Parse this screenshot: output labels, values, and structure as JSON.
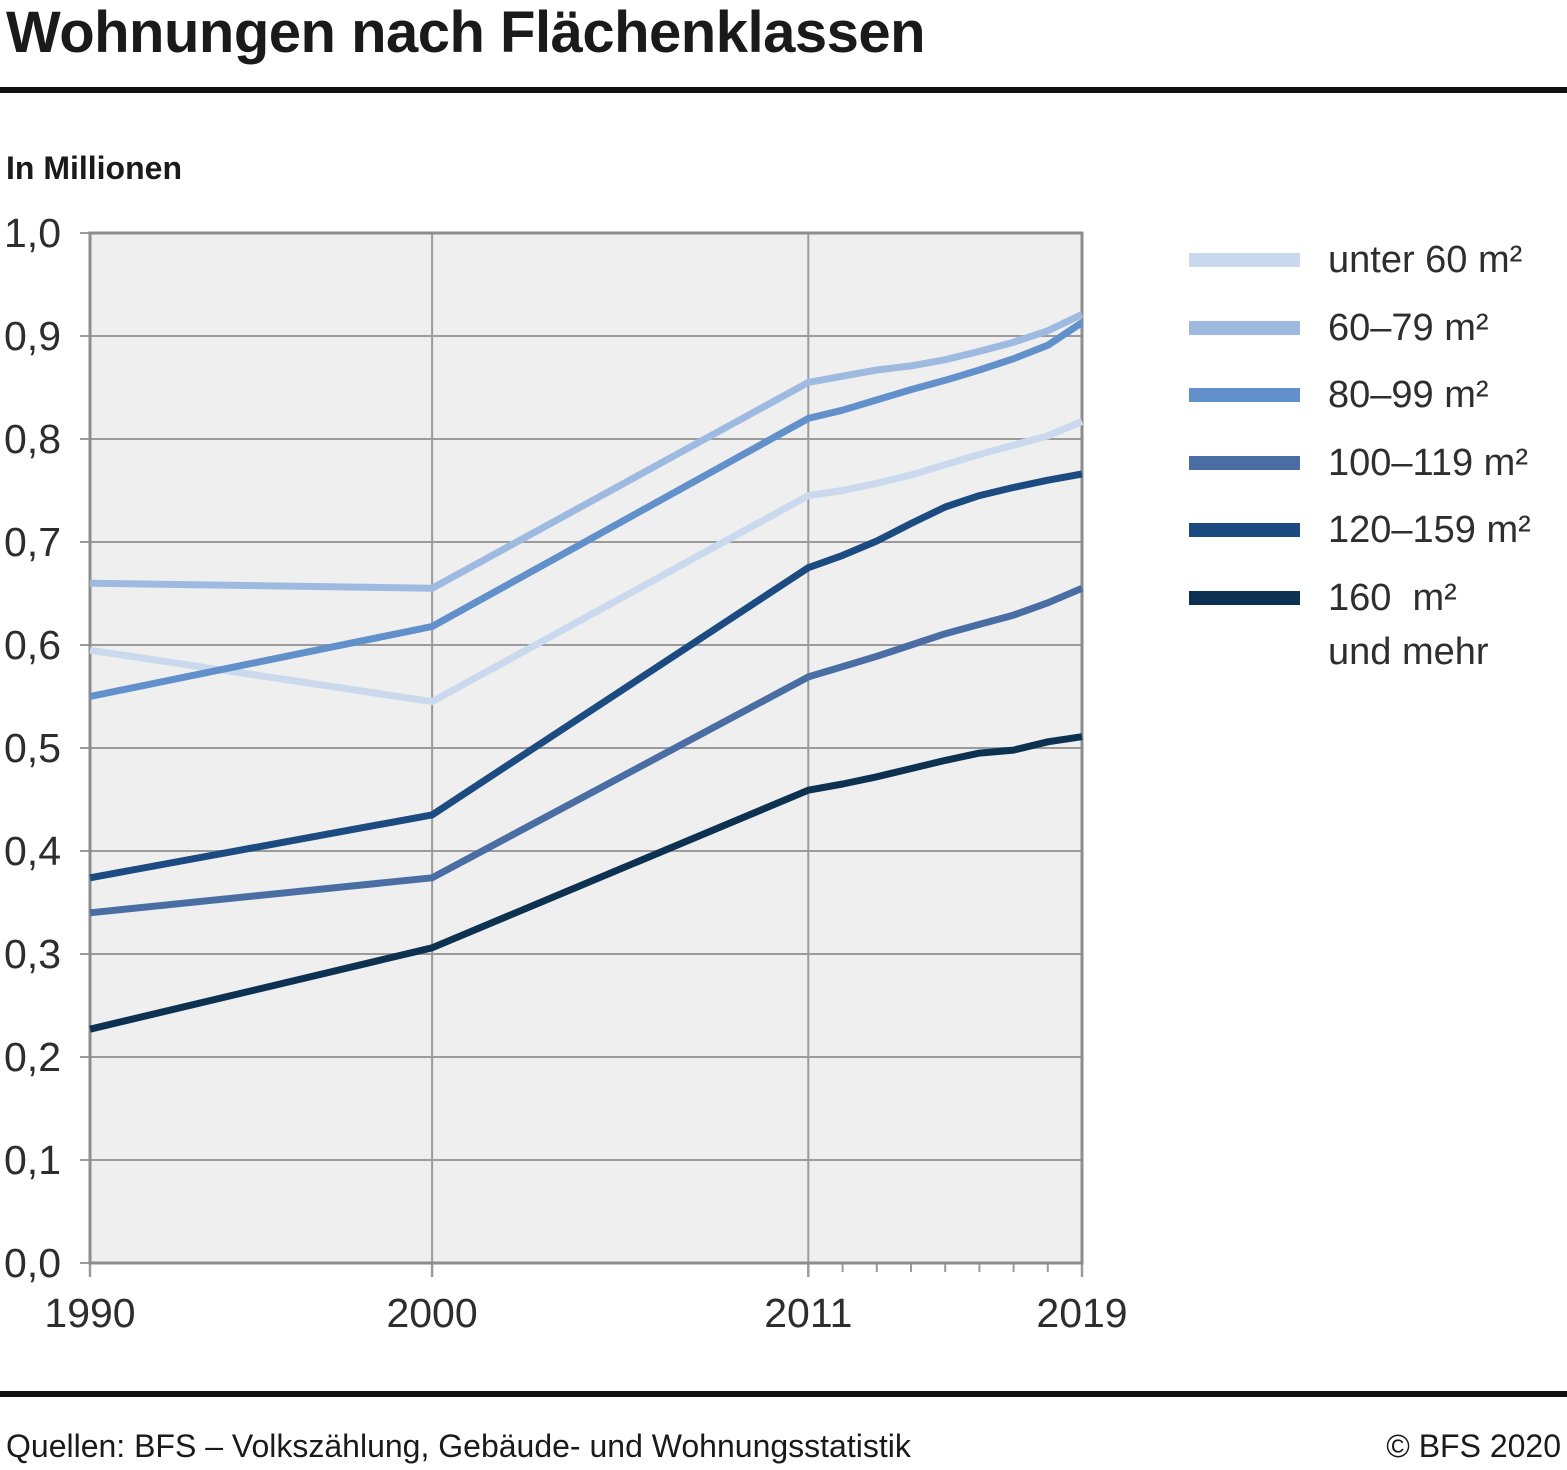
{
  "title": "Wohnungen nach Flächenklassen",
  "subtitle": "In Millionen",
  "footer": {
    "source": "Quellen: BFS – Volkszählung, Gebäude- und Wohnungsstatistik",
    "copyright": "© BFS 2020"
  },
  "colors": {
    "plot_background": "#efefef",
    "gridline": "#9b9b9b",
    "plot_border": "#8d8d8d",
    "rule": "#111111",
    "axis_text": "#2d2d2d"
  },
  "chart_data": {
    "type": "line",
    "title": "Wohnungen nach Flächenklassen",
    "unit_label": "In Millionen",
    "x": [
      1990,
      2000,
      2011,
      2012,
      2013,
      2014,
      2015,
      2016,
      2017,
      2018,
      2019
    ],
    "xlim": [
      1990,
      2019
    ],
    "ylim": [
      0.0,
      1.0
    ],
    "y_tick_step": 0.1,
    "y_tick_labels": [
      "0,0",
      "0,1",
      "0,2",
      "0,3",
      "0,4",
      "0,5",
      "0,6",
      "0,7",
      "0,8",
      "0,9",
      "1,0"
    ],
    "x_major_ticks": [
      {
        "year": 1990,
        "label": "1990"
      },
      {
        "year": 2000,
        "label": "2000"
      },
      {
        "year": 2011,
        "label": "2011"
      },
      {
        "year": 2019,
        "label": "2019"
      }
    ],
    "x_minor_ticks": [
      2012,
      2013,
      2014,
      2015,
      2016,
      2017,
      2018
    ],
    "grid": true,
    "legend_position": "right",
    "series": [
      {
        "id": "unter-60",
        "label": "unter 60 m²",
        "label_line2": "",
        "color": "#cbd9ee",
        "values": [
          0.595,
          0.545,
          0.745,
          0.75,
          0.757,
          0.765,
          0.775,
          0.785,
          0.794,
          0.803,
          0.817
        ]
      },
      {
        "id": "60-79",
        "label": "60–79 m²",
        "label_line2": "",
        "color": "#9fbae0",
        "values": [
          0.66,
          0.655,
          0.855,
          0.861,
          0.867,
          0.871,
          0.877,
          0.885,
          0.894,
          0.905,
          0.921
        ]
      },
      {
        "id": "80-99",
        "label": "80–99 m²",
        "label_line2": "",
        "color": "#6290cb",
        "values": [
          0.55,
          0.618,
          0.82,
          0.828,
          0.838,
          0.848,
          0.857,
          0.867,
          0.878,
          0.891,
          0.913
        ]
      },
      {
        "id": "100-119",
        "label": "100–119 m²",
        "label_line2": "",
        "color": "#4a6da4",
        "values": [
          0.34,
          0.374,
          0.569,
          0.579,
          0.589,
          0.6,
          0.611,
          0.62,
          0.629,
          0.641,
          0.655
        ]
      },
      {
        "id": "120-159",
        "label": "120–159 m²",
        "label_line2": "",
        "color": "#1c4b81",
        "values": [
          0.374,
          0.435,
          0.675,
          0.687,
          0.701,
          0.718,
          0.734,
          0.745,
          0.753,
          0.76,
          0.766
        ]
      },
      {
        "id": "160-plus",
        "label": "160  m²",
        "label_line2": "und mehr",
        "color": "#0d3251",
        "values": [
          0.227,
          0.306,
          0.459,
          0.465,
          0.472,
          0.48,
          0.488,
          0.495,
          0.498,
          0.506,
          0.511
        ]
      }
    ]
  }
}
